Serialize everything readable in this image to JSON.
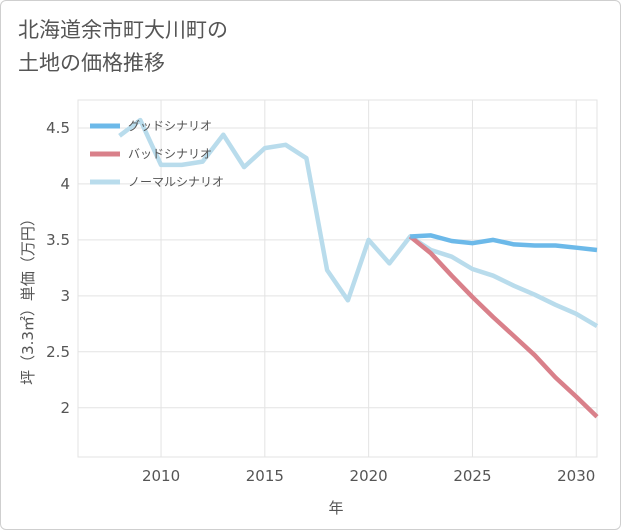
{
  "title": {
    "line1": "北海道余市町大川町の",
    "line2": "土地の価格推移"
  },
  "chart_data": {
    "type": "line",
    "xlabel": "年",
    "ylabel": "坪（3.3㎡）単価（万円）",
    "xlim": [
      2006,
      2031
    ],
    "ylim": [
      1.56,
      4.75
    ],
    "xticks": [
      2010,
      2015,
      2020,
      2025,
      2030
    ],
    "yticks": [
      2,
      2.5,
      3,
      3.5,
      4,
      4.5
    ],
    "ytick_labels": [
      "2",
      "2.5",
      "3",
      "3.5",
      "4",
      "4.5"
    ],
    "grid": true,
    "legend_position": "top-left",
    "series": [
      {
        "name": "グッドシナリオ",
        "color": "#6cb9e9",
        "x": [
          2022,
          2023,
          2024,
          2025,
          2026,
          2027,
          2028,
          2029,
          2030,
          2031
        ],
        "y": [
          3.53,
          3.54,
          3.49,
          3.47,
          3.5,
          3.46,
          3.45,
          3.45,
          3.43,
          3.41
        ]
      },
      {
        "name": "バッドシナリオ",
        "color": "#d9808a",
        "x": [
          2022,
          2023,
          2024,
          2025,
          2026,
          2027,
          2028,
          2029,
          2030,
          2031
        ],
        "y": [
          3.53,
          3.38,
          3.18,
          2.99,
          2.81,
          2.64,
          2.47,
          2.27,
          2.1,
          1.92
        ]
      },
      {
        "name": "ノーマルシナリオ",
        "color": "#b9dcec",
        "x": [
          2008,
          2009,
          2010,
          2011,
          2012,
          2013,
          2014,
          2015,
          2016,
          2017,
          2018,
          2019,
          2020,
          2021,
          2022,
          2023,
          2024,
          2025,
          2026,
          2027,
          2028,
          2029,
          2030,
          2031
        ],
        "y": [
          4.43,
          4.57,
          4.17,
          4.17,
          4.2,
          4.44,
          4.15,
          4.32,
          4.35,
          4.23,
          3.23,
          2.96,
          3.5,
          3.29,
          3.53,
          3.41,
          3.35,
          3.24,
          3.18,
          3.09,
          3.01,
          2.92,
          2.84,
          2.73
        ]
      }
    ]
  }
}
